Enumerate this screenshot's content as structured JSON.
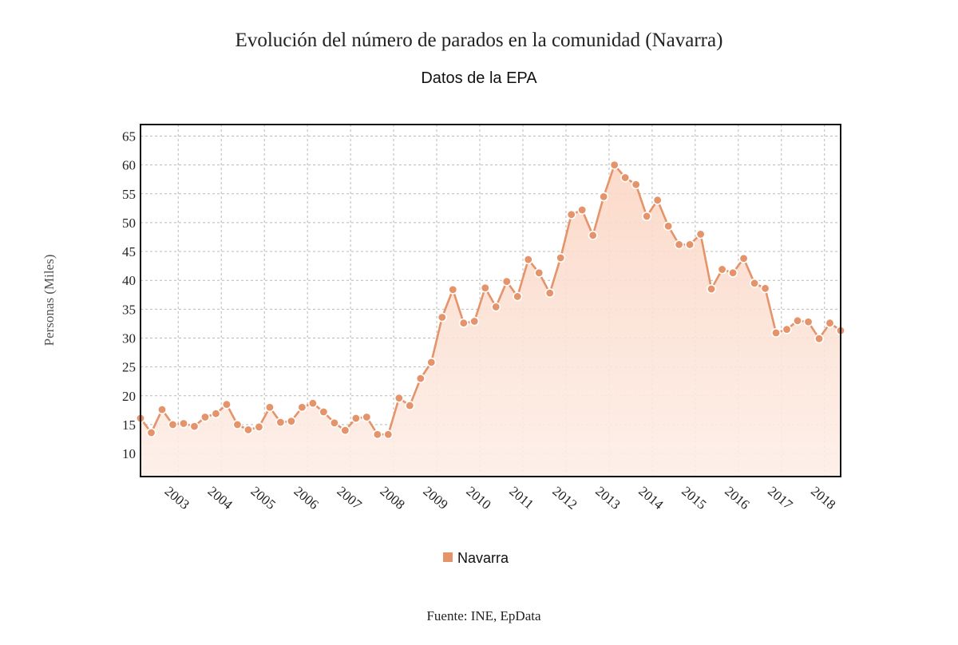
{
  "chart_data": {
    "type": "area",
    "title": "Evolución del número de parados en la comunidad (Navarra)",
    "subtitle": "Datos de la EPA",
    "ylabel": "Personas (Miles)",
    "xlabel": "",
    "source": "Fuente: INE, EpData",
    "ylim": [
      6,
      67
    ],
    "yticks": [
      10,
      15,
      20,
      25,
      30,
      35,
      40,
      45,
      50,
      55,
      60,
      65
    ],
    "x_start_quarter": "2002 T1",
    "xticks": [
      "2003",
      "2004",
      "2005",
      "2006",
      "2007",
      "2008",
      "2009",
      "2010",
      "2011",
      "2012",
      "2013",
      "2014",
      "2015",
      "2016",
      "2017",
      "2018"
    ],
    "grid": true,
    "legend_position": "bottom-center",
    "colors": {
      "line": "#e5936a",
      "marker": "#e5936a",
      "marker_outline": "#ffffff",
      "fill_top": "#fbd9c8",
      "fill_bottom": "#fdf0ea",
      "grid": "#b9b9b9"
    },
    "series": [
      {
        "name": "Navarra",
        "values": [
          16.1,
          13.6,
          17.6,
          15.0,
          15.2,
          14.7,
          16.3,
          16.9,
          18.5,
          15.0,
          14.1,
          14.6,
          18.0,
          15.4,
          15.6,
          18.0,
          18.7,
          17.2,
          15.3,
          14.0,
          16.1,
          16.3,
          13.3,
          13.3,
          19.6,
          18.3,
          23.0,
          25.8,
          33.6,
          38.4,
          32.6,
          32.9,
          38.7,
          35.4,
          39.8,
          37.2,
          43.6,
          41.3,
          37.8,
          43.9,
          51.4,
          52.2,
          47.8,
          54.5,
          60.0,
          57.8,
          56.6,
          51.1,
          53.9,
          49.4,
          46.2,
          46.2,
          48.0,
          38.5,
          41.9,
          41.3,
          43.8,
          39.5,
          38.6,
          30.9,
          31.5,
          33.0,
          32.8,
          29.9,
          32.6,
          31.3
        ]
      }
    ]
  }
}
